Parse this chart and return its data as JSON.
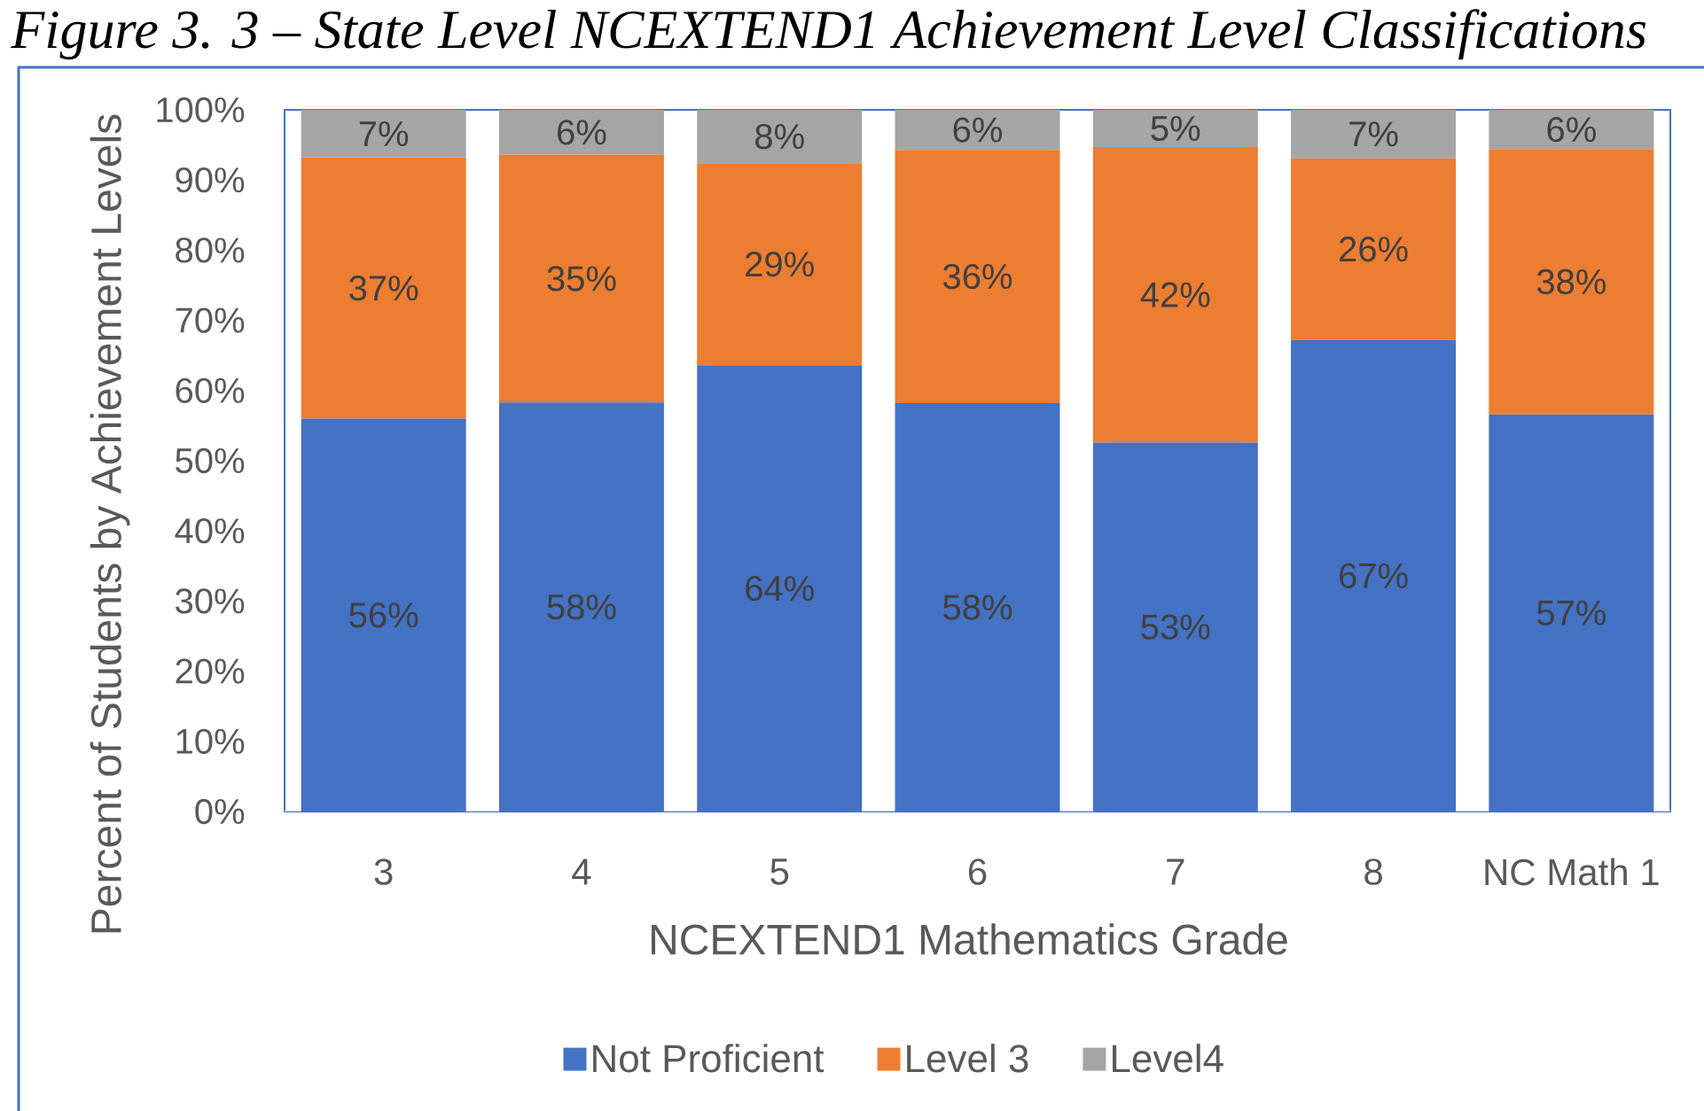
{
  "chart_data": {
    "type": "bar",
    "title": "Figure 3. 3 – State Level NCEXTEND1 Achievement Level Classifications",
    "xlabel": "NCEXTEND1 Mathematics Grade",
    "ylabel": "Percent of Students by Achievement Levels",
    "categories": [
      "3",
      "4",
      "5",
      "6",
      "7",
      "8",
      "NC Math 1"
    ],
    "stacked": true,
    "series": [
      {
        "name": "Not Proficient",
        "color": "#4472c4",
        "values": [
          56.0,
          58.3,
          63.6,
          58.2,
          52.6,
          67.2,
          56.6
        ],
        "value_labels": [
          "56%",
          "58%",
          "64%",
          "58%",
          "53%",
          "67%",
          "57%"
        ]
      },
      {
        "name": "Level 3",
        "color": "#ed7d31",
        "values": [
          37.2,
          35.3,
          28.8,
          36.1,
          42.1,
          25.9,
          37.8
        ],
        "value_labels": [
          "37%",
          "35%",
          "29%",
          "36%",
          "42%",
          "26%",
          "38%"
        ]
      },
      {
        "name": "Level4",
        "color": "#a5a5a5",
        "values": [
          6.8,
          6.4,
          7.6,
          5.7,
          5.3,
          6.9,
          5.6
        ],
        "value_labels": [
          "7%",
          "6%",
          "8%",
          "6%",
          "5%",
          "7%",
          "6%"
        ]
      }
    ],
    "ylim": [
      0,
      100
    ],
    "yticks": [
      {
        "value": 0,
        "label": "0%"
      },
      {
        "value": 10,
        "label": "10%"
      },
      {
        "value": 20,
        "label": "20%"
      },
      {
        "value": 30,
        "label": "30%"
      },
      {
        "value": 40,
        "label": "40%"
      },
      {
        "value": 50,
        "label": "50%"
      },
      {
        "value": 60,
        "label": "60%"
      },
      {
        "value": 70,
        "label": "70%"
      },
      {
        "value": 80,
        "label": "80%"
      },
      {
        "value": 90,
        "label": "90%"
      },
      {
        "value": 100,
        "label": "100%"
      }
    ],
    "legend": "bottom"
  }
}
